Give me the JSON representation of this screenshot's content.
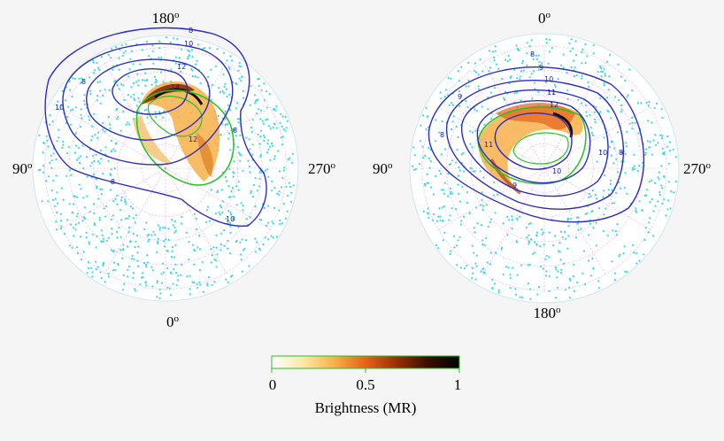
{
  "panels": [
    {
      "orientation_labels": {
        "top": "180",
        "bottom": "0",
        "left": "90",
        "right": "270"
      },
      "contour_labels": [
        "8",
        "10",
        "12",
        "14",
        "8",
        "8",
        "8",
        "10",
        "10",
        "12"
      ]
    },
    {
      "orientation_labels": {
        "top": "0",
        "bottom": "180",
        "left": "90",
        "right": "270"
      },
      "contour_labels": [
        "8",
        "9",
        "10",
        "11",
        "12",
        "8",
        "9",
        "9",
        "10",
        "11",
        "10",
        "8"
      ]
    }
  ],
  "degree_symbol": "o",
  "colorbar": {
    "ticks": [
      "0",
      "0.5",
      "1"
    ],
    "label": "Brightness (MR)",
    "range": [
      0,
      1
    ],
    "colors": [
      "#ffffff",
      "#ffe9a8",
      "#f7b04a",
      "#e4621a",
      "#9a2e06",
      "#3a0e02",
      "#000000"
    ]
  },
  "colors": {
    "background": "#f5f5f5",
    "disk": "#ffffff",
    "disk_edge": "#cfe6ea",
    "footprint_points": "#34d9e6",
    "grid": "#e6a6e6",
    "contour": "#2b2bc8",
    "oval": "#22c422"
  }
}
